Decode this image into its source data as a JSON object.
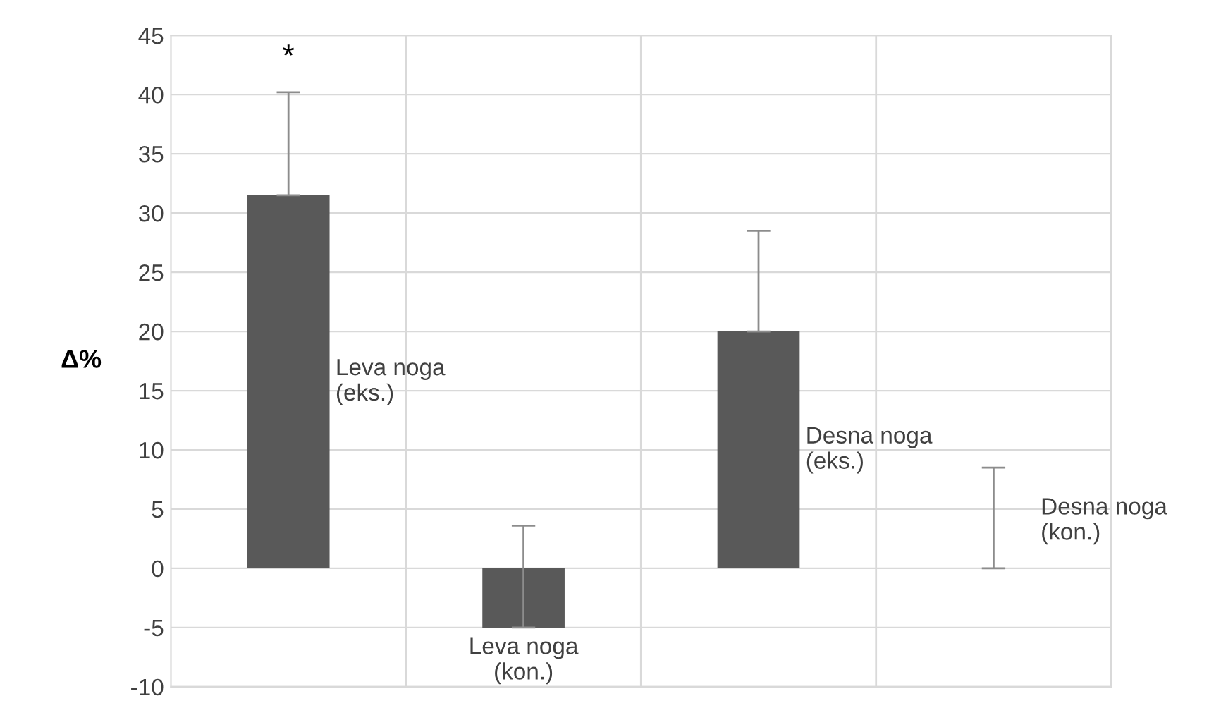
{
  "chart_data": {
    "type": "bar",
    "ylabel": "Δ%",
    "categories": [
      "Leva noga (eks.)",
      "Leva noga (kon.)",
      "Desna noga (eks.)",
      "Desna noga (kon.)"
    ],
    "values": [
      31.5,
      -5,
      20,
      0
    ],
    "errors": [
      [
        31.5,
        40.2
      ],
      [
        -5,
        3.6
      ],
      [
        20,
        28.5
      ],
      [
        0,
        8.5
      ]
    ],
    "color": "#595959",
    "ylim": [
      -10,
      45
    ],
    "yticks": [
      -10,
      -5,
      0,
      5,
      10,
      15,
      20,
      25,
      30,
      35,
      40,
      45
    ],
    "grid": true,
    "annotations": [
      "*"
    ]
  }
}
